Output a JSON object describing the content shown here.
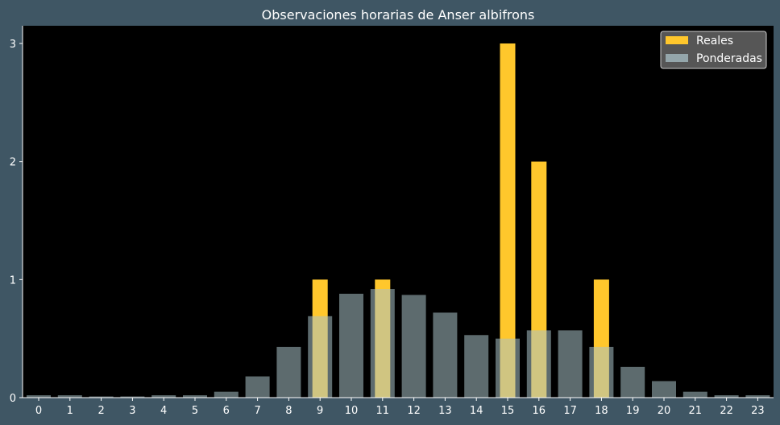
{
  "chart_data": {
    "type": "bar",
    "title": "Observaciones horarias de Anser albifrons",
    "xlabel": "",
    "ylabel": "",
    "categories": [
      "0",
      "1",
      "2",
      "3",
      "4",
      "5",
      "6",
      "7",
      "8",
      "9",
      "10",
      "11",
      "12",
      "13",
      "14",
      "15",
      "16",
      "17",
      "18",
      "19",
      "20",
      "21",
      "22",
      "23"
    ],
    "ylim": [
      0,
      3.15
    ],
    "yticks": [
      "0",
      "1",
      "2",
      "3"
    ],
    "grid": false,
    "legend_position": "top-right",
    "series": [
      {
        "name": "Reales",
        "color": "#ffc72c",
        "values": [
          0,
          0,
          0,
          0,
          0,
          0,
          0,
          0,
          0,
          1,
          0,
          1,
          0,
          0,
          0,
          3,
          2,
          0,
          1,
          0,
          0,
          0,
          0,
          0
        ]
      },
      {
        "name": "Ponderadas",
        "color": "#a9c2c8",
        "values": [
          0.02,
          0.02,
          0.01,
          0.01,
          0.02,
          0.02,
          0.05,
          0.18,
          0.43,
          0.69,
          0.88,
          0.92,
          0.87,
          0.72,
          0.53,
          0.5,
          0.57,
          0.57,
          0.43,
          0.26,
          0.14,
          0.05,
          0.02,
          0.02
        ]
      }
    ]
  }
}
